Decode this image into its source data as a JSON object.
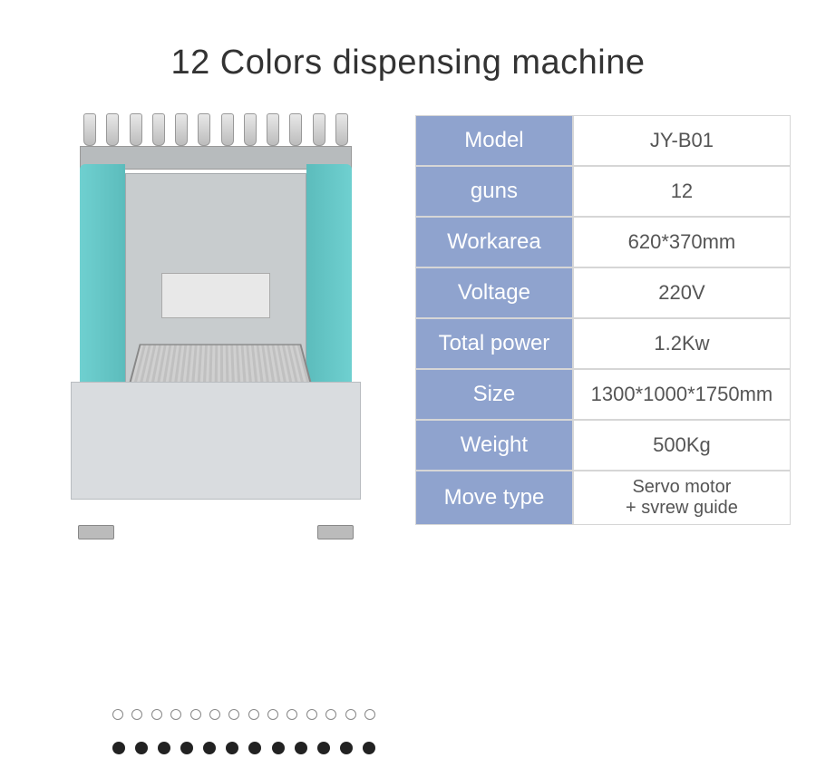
{
  "title": "12 Colors dispensing machine",
  "colors": {
    "label_bg": "#8fa3ce",
    "label_text": "#ffffff",
    "value_text": "#555555",
    "border": "#d6d6d6",
    "machine_accent": "#6fd0d0"
  },
  "nozzle_count": 12,
  "knob_count": 12,
  "gauge_count": 14,
  "specs": [
    {
      "label": "Model",
      "value": "JY-B01"
    },
    {
      "label": "guns",
      "value": "12"
    },
    {
      "label": "Workarea",
      "value": "620*370mm"
    },
    {
      "label": "Voltage",
      "value": "220V"
    },
    {
      "label": "Total power",
      "value": "1.2Kw"
    },
    {
      "label": "Size",
      "value": "1300*1000*1750mm"
    },
    {
      "label": "Weight",
      "value": "500Kg"
    },
    {
      "label": "Move type",
      "value": "Servo motor\n+ svrew guide"
    }
  ]
}
